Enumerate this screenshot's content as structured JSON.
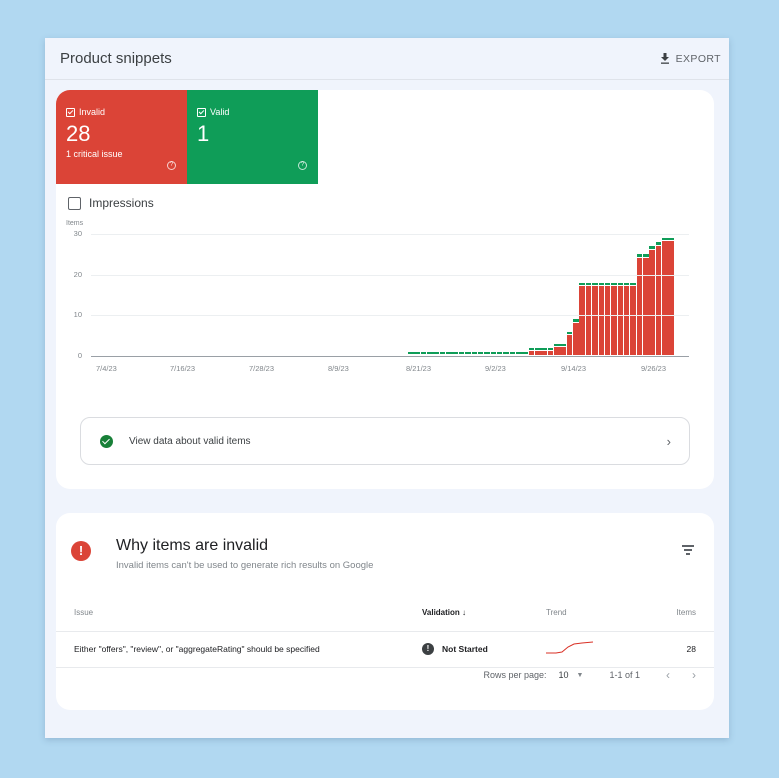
{
  "header": {
    "title": "Product snippets",
    "export_label": "EXPORT",
    "export_icon": "download-icon"
  },
  "tiles": [
    {
      "label": "Invalid",
      "value": "28",
      "sub": "1 critical issue",
      "color": "#db4437"
    },
    {
      "label": "Valid",
      "value": "1",
      "sub": "",
      "color": "#0f9d58"
    }
  ],
  "impressions": {
    "label": "Impressions",
    "checked": false
  },
  "colors": {
    "invalid": "#db4437",
    "valid": "#0f9d58",
    "background": "#b1d8f1",
    "panel": "#f0f4fc"
  },
  "chart_data": {
    "type": "bar",
    "stacked": true,
    "title": "",
    "ylabel": "Items",
    "xlabel": "",
    "ylim": [
      0,
      30
    ],
    "yticks": [
      0,
      10,
      20,
      30
    ],
    "xticks": [
      "7/4/23",
      "7/16/23",
      "7/28/23",
      "8/9/23",
      "8/21/23",
      "9/2/23",
      "9/14/23",
      "9/26/23"
    ],
    "grid": true,
    "legend": [
      "Invalid",
      "Valid"
    ],
    "x_start": "8/21/23",
    "x_end": "10/3/23",
    "series": [
      {
        "name": "Invalid",
        "color": "#db4437",
        "values": [
          0,
          0,
          0,
          0,
          0,
          0,
          0,
          0,
          0,
          0,
          0,
          0,
          0,
          0,
          0,
          0,
          0,
          0,
          0,
          1,
          1,
          1,
          1,
          2,
          2,
          5,
          8,
          17,
          17,
          17,
          17,
          17,
          17,
          17,
          17,
          17,
          24,
          24,
          26,
          27,
          28,
          28
        ]
      },
      {
        "name": "Valid",
        "color": "#0f9d58",
        "values": [
          1,
          1,
          1,
          1,
          1,
          1,
          1,
          1,
          1,
          1,
          1,
          1,
          1,
          1,
          1,
          1,
          1,
          1,
          1,
          1,
          1,
          1,
          1,
          1,
          1,
          1,
          1,
          1,
          1,
          1,
          1,
          1,
          1,
          1,
          1,
          1,
          1,
          1,
          1,
          1,
          1,
          1
        ]
      }
    ]
  },
  "valid_link": {
    "label": "View data about valid items"
  },
  "invalid_section": {
    "title": "Why items are invalid",
    "subtitle": "Invalid items can't be used to generate rich results on Google",
    "columns": {
      "issue": "Issue",
      "validation": "Validation",
      "trend": "Trend",
      "items": "Items"
    },
    "rows": [
      {
        "issue": "Either \"offers\", \"review\", or \"aggregateRating\" should be specified",
        "validation": "Not Started",
        "items": "28"
      }
    ],
    "pagination": {
      "rows_per_page_label": "Rows per page:",
      "rows_per_page": "10",
      "range": "1-1 of 1"
    }
  }
}
